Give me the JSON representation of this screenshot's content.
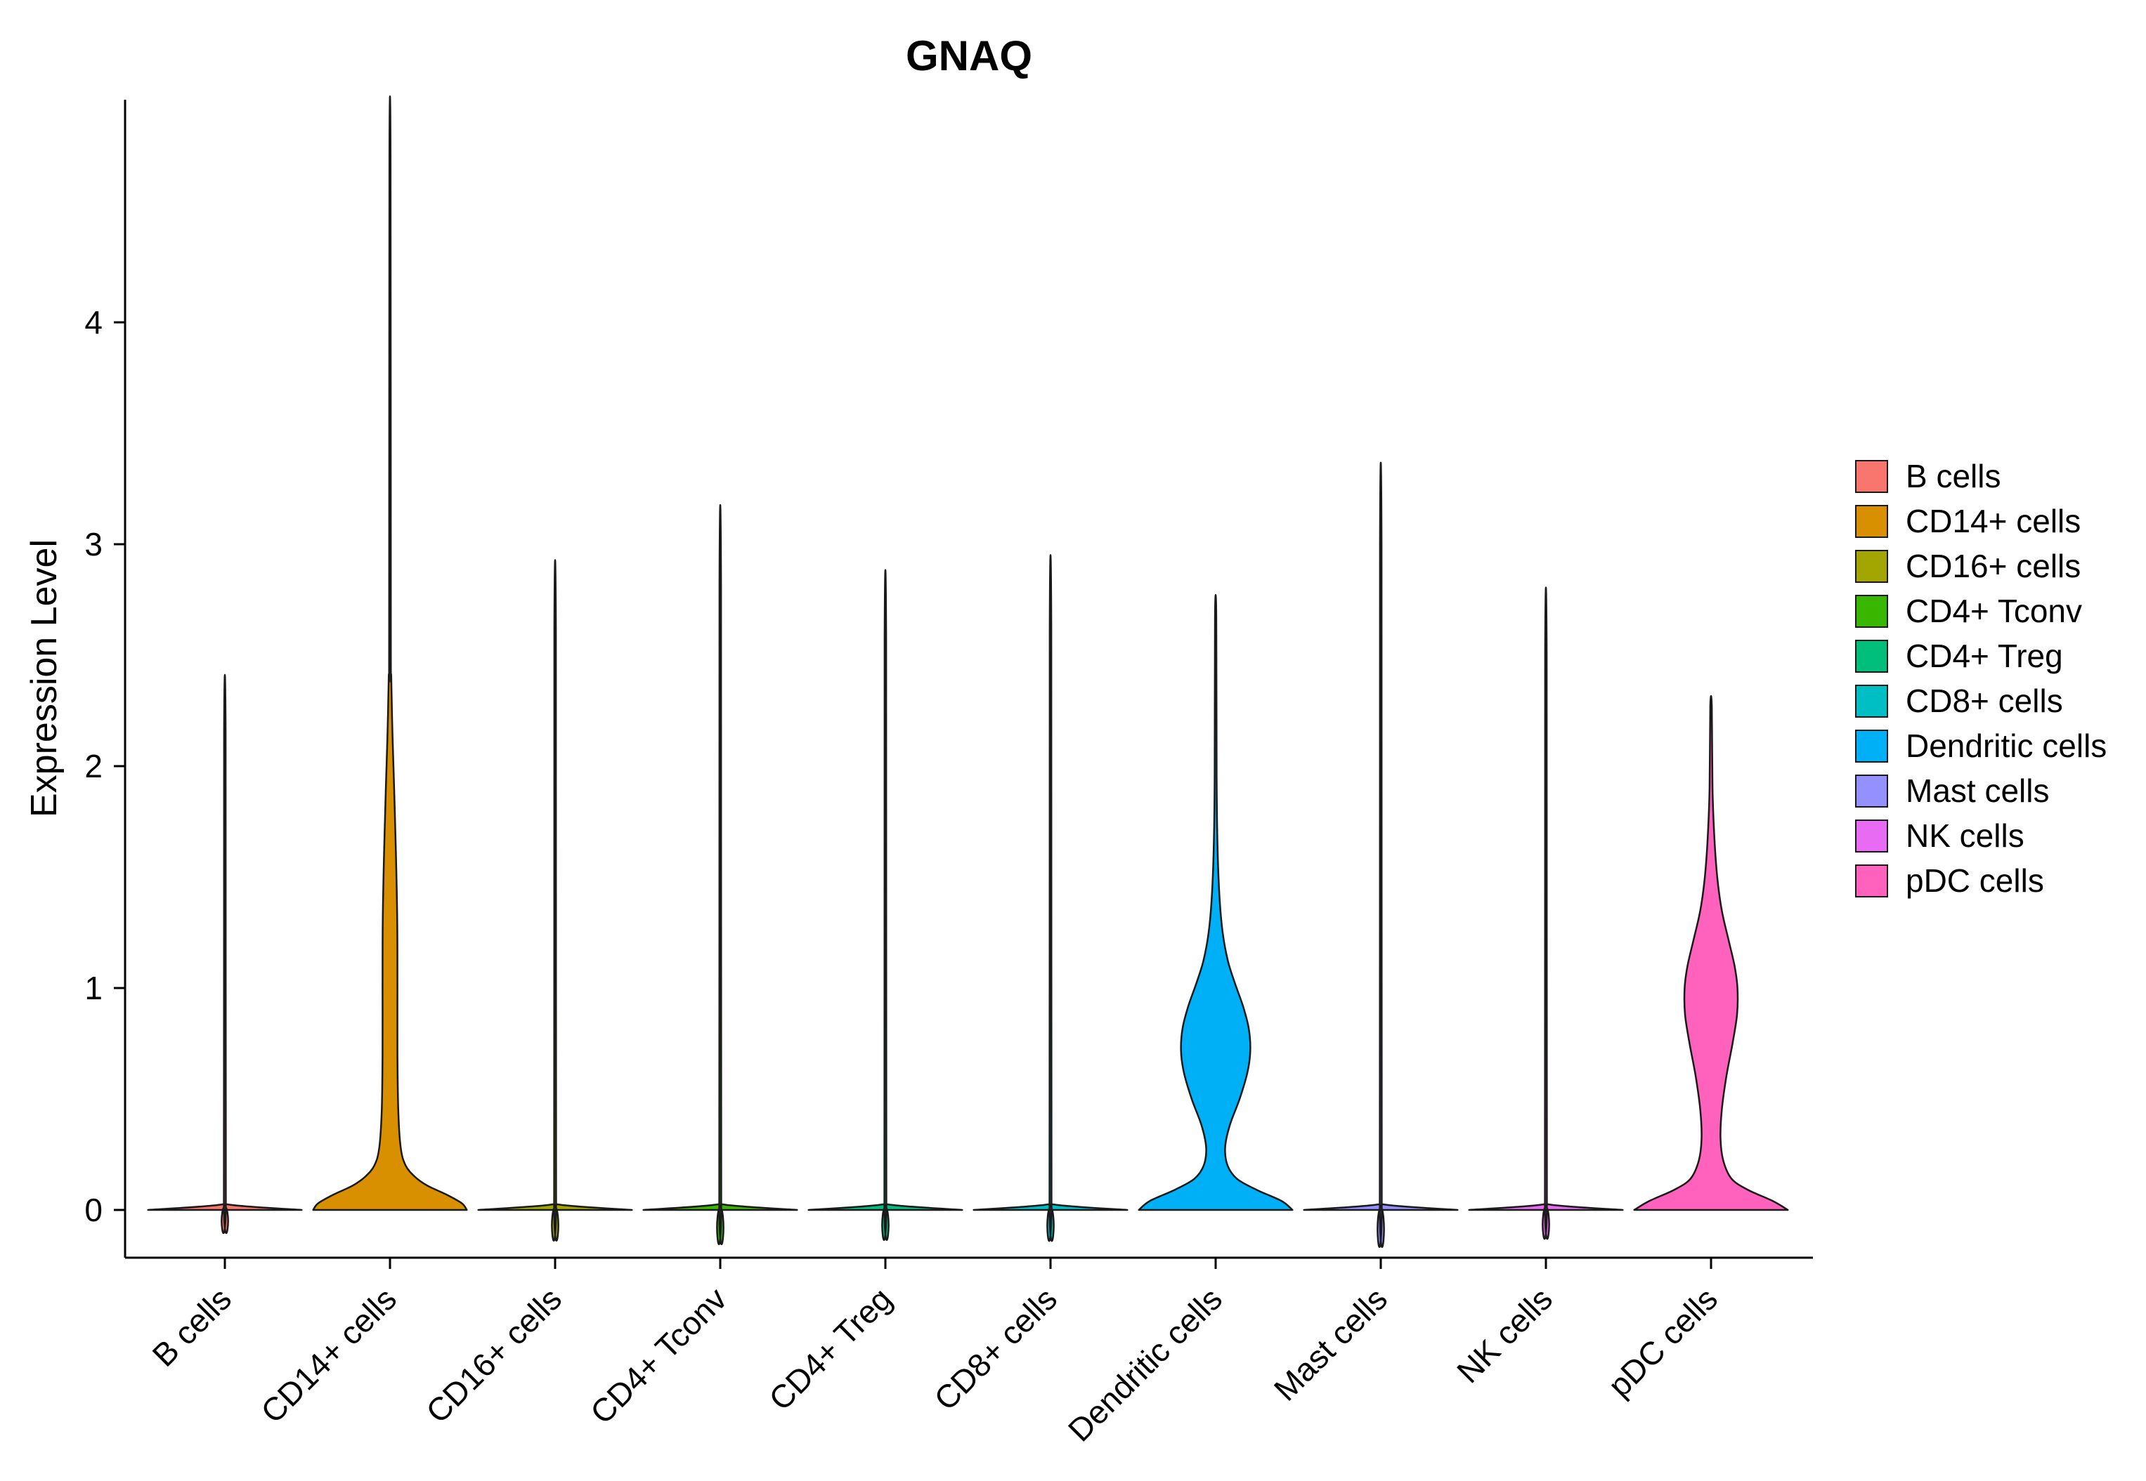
{
  "title": "GNAQ",
  "chart_data": {
    "type": "violin",
    "title": "GNAQ",
    "xlabel": "",
    "ylabel": "Expression Level",
    "ylim": [
      0,
      4.9
    ],
    "grid": false,
    "legend_position": "right",
    "y_ticks": [
      "0",
      "1",
      "2",
      "3",
      "4"
    ],
    "y_tick_values": [
      0,
      1,
      2,
      3,
      4
    ],
    "categories": [
      "B cells",
      "CD14+ cells",
      "CD16+ cells",
      "CD4+ Tconv",
      "CD4+ Treg",
      "CD8+ cells",
      "Dendritic cells",
      "Mast cells",
      "NK cells",
      "pDC cells"
    ],
    "series": [
      {
        "name": "B cells",
        "color": "#F8766D",
        "max": 2.15,
        "profile": [
          [
            0,
            0.93
          ],
          [
            0.025,
            0.035
          ],
          [
            0.06,
            0.012
          ],
          [
            2.15,
            0.009
          ]
        ]
      },
      {
        "name": "CD14+ cells",
        "color": "#D89000",
        "max": 4.75,
        "profile": [
          [
            0,
            0.93
          ],
          [
            0.03,
            0.87
          ],
          [
            0.07,
            0.68
          ],
          [
            0.11,
            0.45
          ],
          [
            0.15,
            0.3
          ],
          [
            0.2,
            0.19
          ],
          [
            0.28,
            0.13
          ],
          [
            0.45,
            0.1
          ],
          [
            0.7,
            0.09
          ],
          [
            1.0,
            0.09
          ],
          [
            1.3,
            0.088
          ],
          [
            1.6,
            0.072
          ],
          [
            1.9,
            0.05
          ],
          [
            2.15,
            0.03
          ],
          [
            2.4,
            0.015
          ],
          [
            2.6,
            0.01
          ],
          [
            4.75,
            0.007
          ]
        ]
      },
      {
        "name": "CD16+ cells",
        "color": "#A3A500",
        "max": 2.61,
        "profile": [
          [
            0,
            0.93
          ],
          [
            0.025,
            0.035
          ],
          [
            0.06,
            0.012
          ],
          [
            2.61,
            0.009
          ]
        ]
      },
      {
        "name": "CD4+ Tconv",
        "color": "#39B600",
        "max": 2.83,
        "profile": [
          [
            0,
            0.93
          ],
          [
            0.025,
            0.035
          ],
          [
            0.06,
            0.012
          ],
          [
            2.83,
            0.009
          ]
        ]
      },
      {
        "name": "CD4+ Treg",
        "color": "#00BF7D",
        "max": 2.57,
        "profile": [
          [
            0,
            0.93
          ],
          [
            0.025,
            0.035
          ],
          [
            0.06,
            0.012
          ],
          [
            2.57,
            0.009
          ]
        ]
      },
      {
        "name": "CD8+ cells",
        "color": "#00BFC4",
        "max": 2.63,
        "profile": [
          [
            0,
            0.93
          ],
          [
            0.025,
            0.035
          ],
          [
            0.06,
            0.012
          ],
          [
            2.63,
            0.009
          ]
        ]
      },
      {
        "name": "Dendritic cells",
        "color": "#00B0F6",
        "max": 2.68,
        "profile": [
          [
            0,
            0.93
          ],
          [
            0.04,
            0.8
          ],
          [
            0.09,
            0.5
          ],
          [
            0.14,
            0.26
          ],
          [
            0.2,
            0.145
          ],
          [
            0.28,
            0.115
          ],
          [
            0.38,
            0.17
          ],
          [
            0.5,
            0.29
          ],
          [
            0.62,
            0.385
          ],
          [
            0.72,
            0.42
          ],
          [
            0.82,
            0.4
          ],
          [
            0.92,
            0.33
          ],
          [
            1.02,
            0.235
          ],
          [
            1.12,
            0.15
          ],
          [
            1.25,
            0.085
          ],
          [
            1.42,
            0.045
          ],
          [
            1.65,
            0.022
          ],
          [
            1.95,
            0.012
          ],
          [
            2.68,
            0.008
          ]
        ]
      },
      {
        "name": "Mast cells",
        "color": "#9590FF",
        "max": 3.0,
        "profile": [
          [
            0,
            0.93
          ],
          [
            0.025,
            0.035
          ],
          [
            0.06,
            0.012
          ],
          [
            3.0,
            0.009
          ]
        ]
      },
      {
        "name": "NK cells",
        "color": "#E76BF3",
        "max": 2.5,
        "profile": [
          [
            0,
            0.93
          ],
          [
            0.025,
            0.035
          ],
          [
            0.06,
            0.012
          ],
          [
            2.5,
            0.009
          ]
        ]
      },
      {
        "name": "pDC cells",
        "color": "#FF62BC",
        "max": 2.27,
        "profile": [
          [
            0,
            0.93
          ],
          [
            0.04,
            0.75
          ],
          [
            0.09,
            0.45
          ],
          [
            0.14,
            0.25
          ],
          [
            0.22,
            0.15
          ],
          [
            0.32,
            0.115
          ],
          [
            0.45,
            0.13
          ],
          [
            0.6,
            0.185
          ],
          [
            0.75,
            0.26
          ],
          [
            0.88,
            0.315
          ],
          [
            1.0,
            0.32
          ],
          [
            1.1,
            0.285
          ],
          [
            1.22,
            0.21
          ],
          [
            1.35,
            0.13
          ],
          [
            1.5,
            0.075
          ],
          [
            1.68,
            0.04
          ],
          [
            1.9,
            0.018
          ],
          [
            2.27,
            0.009
          ]
        ]
      }
    ]
  },
  "legend": {
    "items": [
      {
        "label": "B cells",
        "color": "#F8766D"
      },
      {
        "label": "CD14+ cells",
        "color": "#D89000"
      },
      {
        "label": "CD16+ cells",
        "color": "#A3A500"
      },
      {
        "label": "CD4+ Tconv",
        "color": "#39B600"
      },
      {
        "label": "CD4+ Treg",
        "color": "#00BF7D"
      },
      {
        "label": "CD8+ cells",
        "color": "#00BFC4"
      },
      {
        "label": "Dendritic cells",
        "color": "#00B0F6"
      },
      {
        "label": "Mast cells",
        "color": "#9590FF"
      },
      {
        "label": "NK cells",
        "color": "#E76BF3"
      },
      {
        "label": "pDC cells",
        "color": "#FF62BC"
      }
    ]
  },
  "style": {
    "outline_color": "#1A1A1A",
    "axis_color": "#000000"
  }
}
